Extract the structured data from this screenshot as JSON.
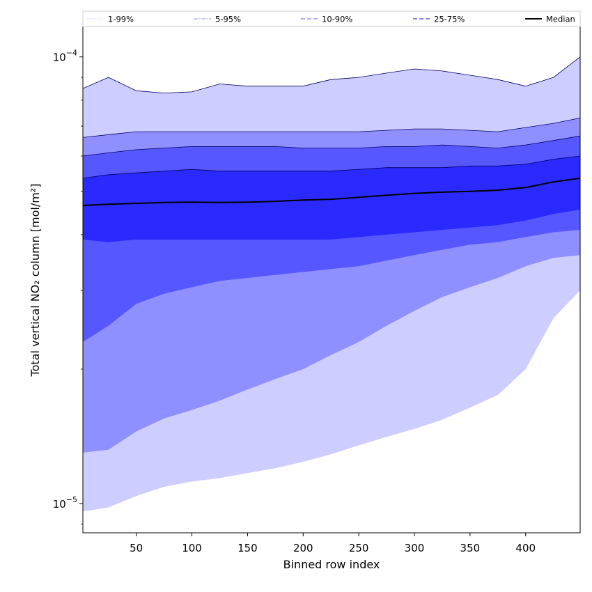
{
  "chart_data": {
    "type": "area",
    "title": "",
    "xlabel": "Binned row index",
    "ylabel": "Total vertical NO₂ column [mol/m²]",
    "xlim": [
      2,
      449
    ],
    "ylim": [
      8.6e-06,
      0.000117
    ],
    "yscale": "log",
    "grid": false,
    "legend_position": "top, spanning full width",
    "x_ticks": [
      50,
      100,
      150,
      200,
      250,
      300,
      350,
      400
    ],
    "y_ticks": [
      {
        "value": 0.0001,
        "base": "10",
        "exponent": "−4"
      },
      {
        "value": 1e-05,
        "base": "10",
        "exponent": "−5"
      }
    ],
    "colors": {
      "band_1_99": "#cdcdff",
      "band_5_95": "#8f8fff",
      "band_10_90": "#5757ff",
      "band_25_75": "#2a2aff",
      "median": "#000000",
      "edge": "#000066"
    },
    "legend": [
      {
        "label": "1-99%",
        "style": "dotted",
        "color": "#c9c9ff"
      },
      {
        "label": "5-95%",
        "style": "dashdot",
        "color": "#9d9dff"
      },
      {
        "label": "10-90%",
        "style": "dashed",
        "color": "#7a7aff"
      },
      {
        "label": "25-75%",
        "style": "dashed",
        "color": "#3a3aff"
      },
      {
        "label": "Median",
        "style": "solid",
        "color": "#000000"
      }
    ],
    "x": [
      2,
      25,
      50,
      75,
      100,
      125,
      150,
      175,
      200,
      225,
      250,
      275,
      300,
      325,
      350,
      375,
      400,
      425,
      449
    ],
    "series": [
      {
        "name": "1-99%",
        "kind": "band",
        "lower": [
          9.6e-06,
          9.8e-06,
          1.04e-05,
          1.09e-05,
          1.12e-05,
          1.14e-05,
          1.17e-05,
          1.2e-05,
          1.24e-05,
          1.29e-05,
          1.35e-05,
          1.41e-05,
          1.47e-05,
          1.54e-05,
          1.64e-05,
          1.75e-05,
          2e-05,
          2.6e-05,
          3e-05
        ],
        "upper": [
          8.5e-05,
          9e-05,
          8.4e-05,
          8.3e-05,
          8.35e-05,
          8.7e-05,
          8.6e-05,
          8.6e-05,
          8.6e-05,
          8.9e-05,
          9e-05,
          9.2e-05,
          9.4e-05,
          9.3e-05,
          9.1e-05,
          8.9e-05,
          8.6e-05,
          9e-05,
          0.0001
        ]
      },
      {
        "name": "5-95%",
        "kind": "band",
        "lower": [
          1.3e-05,
          1.32e-05,
          1.45e-05,
          1.55e-05,
          1.62e-05,
          1.7e-05,
          1.8e-05,
          1.9e-05,
          2e-05,
          2.15e-05,
          2.3e-05,
          2.5e-05,
          2.7e-05,
          2.9e-05,
          3.05e-05,
          3.2e-05,
          3.4e-05,
          3.55e-05,
          3.6e-05
        ],
        "upper": [
          6.6e-05,
          6.7e-05,
          6.8e-05,
          6.8e-05,
          6.8e-05,
          6.8e-05,
          6.8e-05,
          6.8e-05,
          6.8e-05,
          6.8e-05,
          6.8e-05,
          6.85e-05,
          6.9e-05,
          6.9e-05,
          6.85e-05,
          6.8e-05,
          6.95e-05,
          7.1e-05,
          7.3e-05
        ]
      },
      {
        "name": "10-90%",
        "kind": "band",
        "lower": [
          2.3e-05,
          2.5e-05,
          2.8e-05,
          2.95e-05,
          3.05e-05,
          3.15e-05,
          3.2e-05,
          3.25e-05,
          3.3e-05,
          3.35e-05,
          3.4e-05,
          3.5e-05,
          3.6e-05,
          3.7e-05,
          3.8e-05,
          3.85e-05,
          3.95e-05,
          4.05e-05,
          4.1e-05
        ],
        "upper": [
          6e-05,
          6.1e-05,
          6.2e-05,
          6.25e-05,
          6.3e-05,
          6.3e-05,
          6.3e-05,
          6.3e-05,
          6.25e-05,
          6.25e-05,
          6.25e-05,
          6.3e-05,
          6.3e-05,
          6.35e-05,
          6.3e-05,
          6.25e-05,
          6.35e-05,
          6.5e-05,
          6.65e-05
        ]
      },
      {
        "name": "25-75%",
        "kind": "band",
        "lower": [
          3.9e-05,
          3.85e-05,
          3.9e-05,
          3.9e-05,
          3.9e-05,
          3.9e-05,
          3.9e-05,
          3.9e-05,
          3.9e-05,
          3.9e-05,
          3.95e-05,
          4e-05,
          4.05e-05,
          4.1e-05,
          4.15e-05,
          4.2e-05,
          4.3e-05,
          4.45e-05,
          4.55e-05
        ],
        "upper": [
          5.35e-05,
          5.45e-05,
          5.5e-05,
          5.55e-05,
          5.6e-05,
          5.55e-05,
          5.55e-05,
          5.55e-05,
          5.55e-05,
          5.55e-05,
          5.6e-05,
          5.65e-05,
          5.65e-05,
          5.65e-05,
          5.7e-05,
          5.7e-05,
          5.75e-05,
          5.9e-05,
          6e-05
        ]
      },
      {
        "name": "Median",
        "kind": "line",
        "values": [
          4.65e-05,
          4.68e-05,
          4.7e-05,
          4.72e-05,
          4.73e-05,
          4.72e-05,
          4.73e-05,
          4.75e-05,
          4.78e-05,
          4.8e-05,
          4.85e-05,
          4.9e-05,
          4.95e-05,
          4.98e-05,
          5e-05,
          5.03e-05,
          5.1e-05,
          5.25e-05,
          5.35e-05
        ]
      }
    ]
  }
}
